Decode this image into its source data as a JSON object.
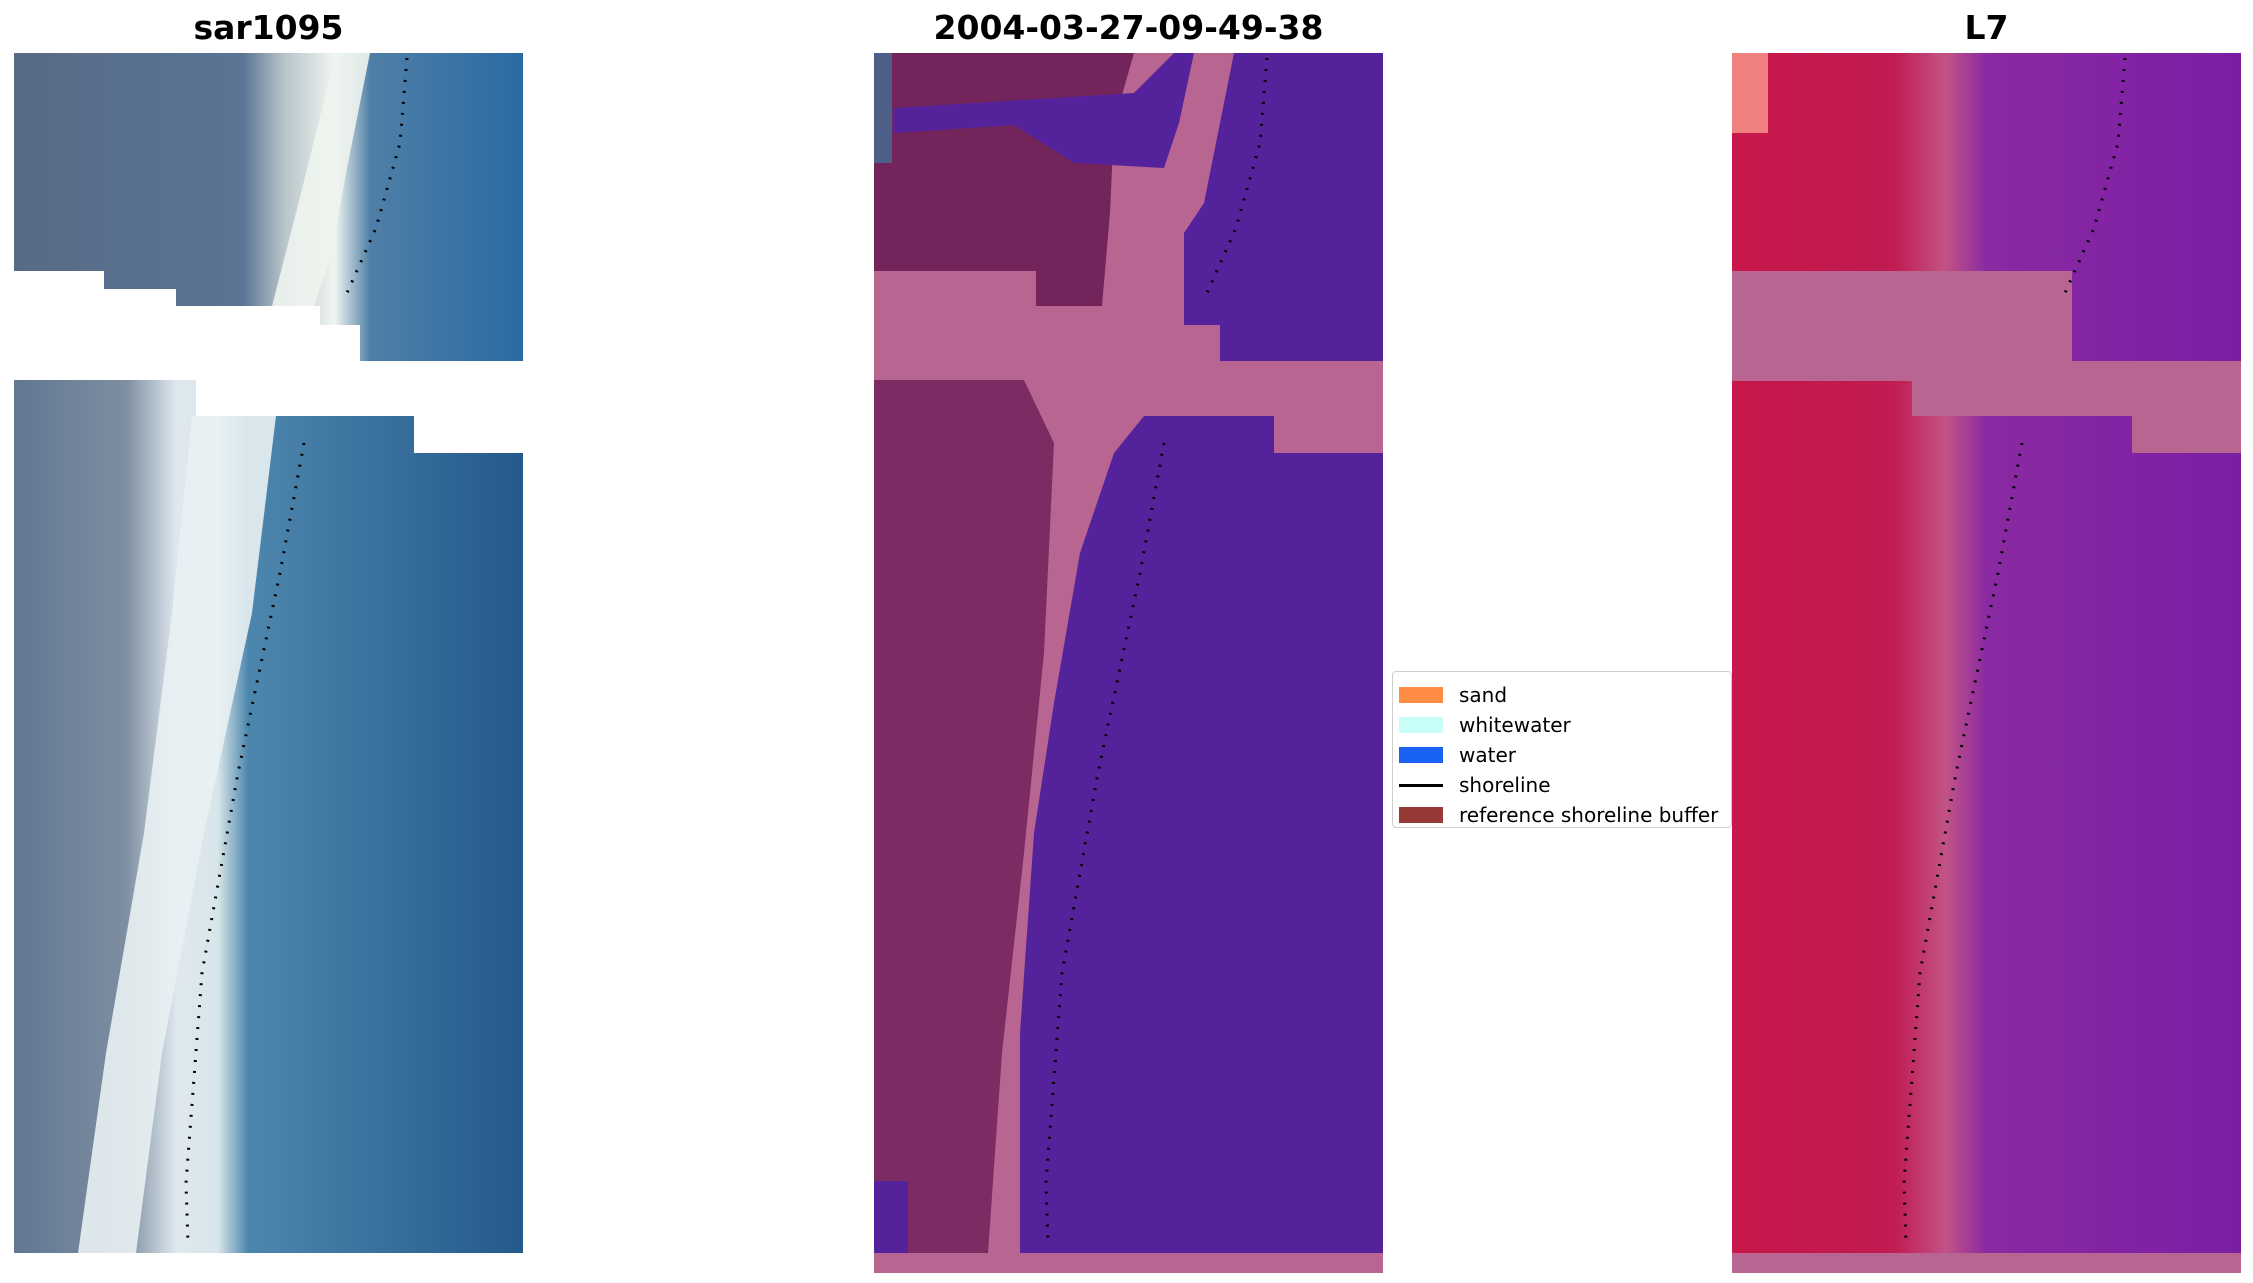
{
  "panels": [
    {
      "title": "sar1095"
    },
    {
      "title": "2004-03-27-09-49-38"
    },
    {
      "title": "L7"
    }
  ],
  "legend": {
    "items": [
      {
        "label": "sand",
        "color": "#ff8c42",
        "kind": "patch"
      },
      {
        "label": "whitewater",
        "color": "#c8fff8",
        "kind": "patch"
      },
      {
        "label": "water",
        "color": "#1a63f2",
        "kind": "patch"
      },
      {
        "label": "shoreline",
        "color": "#000000",
        "kind": "line"
      },
      {
        "label": "reference shoreline buffer",
        "color": "#973a36",
        "kind": "patch"
      }
    ]
  },
  "colors": {
    "rgb_land": "#5f7590",
    "rgb_water": "#235a8d",
    "rgb_surf": "#e8f2f2",
    "class_land": "#7a2f5f",
    "class_water": "#54239b",
    "class_buffer": "#b96592",
    "ndwi_land": "#c21b48",
    "ndwi_water": "#7a1ea4",
    "ndwi_buffer": "#b96592"
  }
}
